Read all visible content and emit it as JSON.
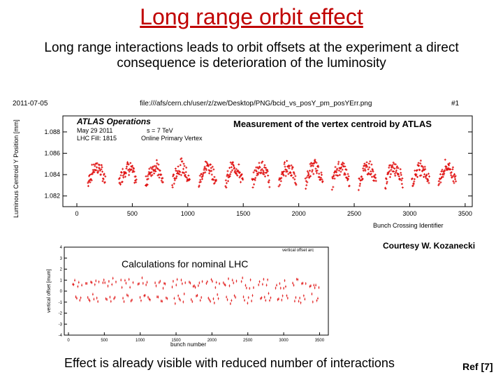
{
  "slide": {
    "title": "Long range orbit effect",
    "subtitle": "Long range interactions leads to orbit offsets at the experiment a direct consequence is deterioration of the luminosity",
    "measurement_label": "Measurement of the vertex centroid by ATLAS",
    "courtesy": "Courtesy W. Kozanecki",
    "calc_label": "Calculations for nominal LHC",
    "effect_text": "Effect is already visible with reduced number of interactions",
    "ref": "Ref [7]"
  },
  "plot1": {
    "date": "2011-07-05",
    "filepath": "file:///afs/cern.ch/user/z/zwe/Desktop/PNG/bcid_vs_posY_pm_posYErr.png",
    "page_num": "#1",
    "atlas_title": "ATLAS Operations",
    "info_line1": "May 29 2011",
    "info_line1b": "s = 7 TeV",
    "info_line2": "LHC Fill: 1815",
    "info_line2b": "Online Primary Vertex",
    "colors": {
      "points": "#e01010",
      "axis": "#000000"
    }
  },
  "plot2": {
    "legend": "vertical offset arc",
    "colors": {
      "points": "#e01010",
      "axis": "#000000"
    }
  },
  "chart_data": [
    {
      "type": "scatter",
      "title": "",
      "xlabel": "Bunch Crossing Identifier",
      "ylabel": "Luminous Centroid Y Position [mm]",
      "xlim": [
        0,
        3564
      ],
      "ylim": [
        1.081,
        1.0895
      ],
      "xticks": [
        "0",
        "500",
        "1000",
        "1500",
        "2000",
        "2500",
        "3000",
        "3500"
      ],
      "yticks": [
        "1.082",
        "1.084",
        "1.086",
        "1.088"
      ],
      "trains_start": [
        100,
        380,
        620,
        860,
        1100,
        1340,
        1580,
        1820,
        2060,
        2300,
        2540,
        2780,
        3020,
        3260
      ],
      "train_length": 160,
      "y_range_in_train": [
        1.0823,
        1.0857
      ]
    },
    {
      "type": "scatter",
      "title": "",
      "xlabel": "bunch number",
      "ylabel": "vertical offset [mum]",
      "xlim": [
        0,
        3564
      ],
      "ylim": [
        -4,
        4
      ],
      "xticks": [
        "0",
        "500",
        "1000",
        "1500",
        "2000",
        "2500",
        "3000",
        "3500"
      ],
      "yticks": [
        "-4",
        "-3",
        "-2",
        "-1",
        "0",
        "1",
        "2",
        "3",
        "4"
      ],
      "series": [
        {
          "name": "vertical offset arc",
          "pattern": "oscillating trains",
          "y_range": [
            -1.2,
            1.3
          ]
        }
      ]
    }
  ]
}
